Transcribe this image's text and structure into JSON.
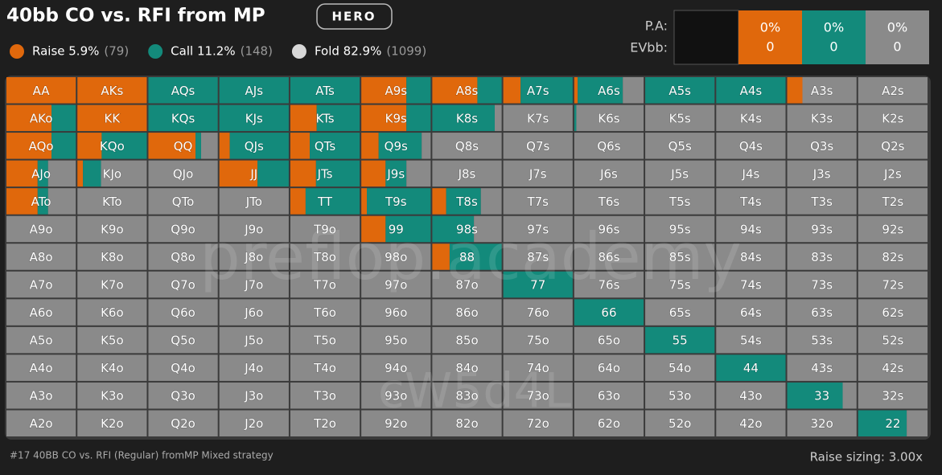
{
  "header": {
    "title": "40bb CO vs. RFI from MP",
    "badge": "HERO"
  },
  "legend": [
    {
      "label": "Raise 5.9%",
      "count": "(79)",
      "color": "#e0680c"
    },
    {
      "label": "Call 11.2%",
      "count": "(148)",
      "color": "#138a7b"
    },
    {
      "label": "Fold 82.9%",
      "count": "(1099)",
      "color": "#d8d8d8"
    }
  ],
  "stats": {
    "labels": [
      "P.A:",
      "EVbb:"
    ],
    "columns": [
      {
        "pa": "0%",
        "ev": "0",
        "color": "#e0680c"
      },
      {
        "pa": "0%",
        "ev": "0",
        "color": "#138a7b"
      },
      {
        "pa": "0%",
        "ev": "0",
        "color": "#8a8a8a"
      }
    ]
  },
  "grid": {
    "colors": {
      "raise": "#e0680c",
      "call": "#138a7b",
      "fold": "#8a8a8a"
    },
    "rows": [
      [
        [
          "AA",
          100,
          0,
          0
        ],
        [
          "AKs",
          100,
          0,
          0
        ],
        [
          "AQs",
          0,
          100,
          0
        ],
        [
          "AJs",
          0,
          100,
          0
        ],
        [
          "ATs",
          0,
          100,
          0
        ],
        [
          "A9s",
          65,
          35,
          0
        ],
        [
          "A8s",
          65,
          35,
          0
        ],
        [
          "A7s",
          25,
          75,
          0
        ],
        [
          "A6s",
          5,
          65,
          30
        ],
        [
          "A5s",
          0,
          100,
          0
        ],
        [
          "A4s",
          0,
          100,
          0
        ],
        [
          "A3s",
          22,
          0,
          78
        ],
        [
          "A2s",
          0,
          0,
          100
        ]
      ],
      [
        [
          "AKo",
          65,
          35,
          0
        ],
        [
          "KK",
          100,
          0,
          0
        ],
        [
          "KQs",
          0,
          100,
          0
        ],
        [
          "KJs",
          0,
          100,
          0
        ],
        [
          "KTs",
          38,
          62,
          0
        ],
        [
          "K9s",
          65,
          35,
          0
        ],
        [
          "K8s",
          0,
          90,
          10
        ],
        [
          "K7s",
          0,
          0,
          100
        ],
        [
          "K6s",
          0,
          3,
          97
        ],
        [
          "K5s",
          0,
          0,
          100
        ],
        [
          "K4s",
          0,
          0,
          100
        ],
        [
          "K3s",
          0,
          0,
          100
        ],
        [
          "K2s",
          0,
          0,
          100
        ]
      ],
      [
        [
          "AQo",
          65,
          35,
          0
        ],
        [
          "KQo",
          35,
          65,
          0
        ],
        [
          "QQ",
          68,
          8,
          24
        ],
        [
          "QJs",
          15,
          85,
          0
        ],
        [
          "QTs",
          28,
          72,
          0
        ],
        [
          "Q9s",
          25,
          62,
          13
        ],
        [
          "Q8s",
          0,
          0,
          100
        ],
        [
          "Q7s",
          0,
          0,
          100
        ],
        [
          "Q6s",
          0,
          0,
          100
        ],
        [
          "Q5s",
          0,
          0,
          100
        ],
        [
          "Q4s",
          0,
          0,
          100
        ],
        [
          "Q3s",
          0,
          0,
          100
        ],
        [
          "Q2s",
          0,
          0,
          100
        ]
      ],
      [
        [
          "AJo",
          45,
          15,
          40
        ],
        [
          "KJo",
          8,
          26,
          66
        ],
        [
          "QJo",
          0,
          0,
          100
        ],
        [
          "JJ",
          55,
          45,
          0
        ],
        [
          "JTs",
          37,
          63,
          0
        ],
        [
          "J9s",
          35,
          30,
          35
        ],
        [
          "J8s",
          0,
          0,
          100
        ],
        [
          "J7s",
          0,
          0,
          100
        ],
        [
          "J6s",
          0,
          0,
          100
        ],
        [
          "J5s",
          0,
          0,
          100
        ],
        [
          "J4s",
          0,
          0,
          100
        ],
        [
          "J3s",
          0,
          0,
          100
        ],
        [
          "J2s",
          0,
          0,
          100
        ]
      ],
      [
        [
          "ATo",
          45,
          15,
          40
        ],
        [
          "KTo",
          0,
          0,
          100
        ],
        [
          "QTo",
          0,
          0,
          100
        ],
        [
          "JTo",
          0,
          0,
          100
        ],
        [
          "TT",
          22,
          78,
          0
        ],
        [
          "T9s",
          8,
          92,
          0
        ],
        [
          "T8s",
          20,
          50,
          30
        ],
        [
          "T7s",
          0,
          0,
          100
        ],
        [
          "T6s",
          0,
          0,
          100
        ],
        [
          "T5s",
          0,
          0,
          100
        ],
        [
          "T4s",
          0,
          0,
          100
        ],
        [
          "T3s",
          0,
          0,
          100
        ],
        [
          "T2s",
          0,
          0,
          100
        ]
      ],
      [
        [
          "A9o",
          0,
          0,
          100
        ],
        [
          "K9o",
          0,
          0,
          100
        ],
        [
          "Q9o",
          0,
          0,
          100
        ],
        [
          "J9o",
          0,
          0,
          100
        ],
        [
          "T9o",
          0,
          0,
          100
        ],
        [
          "99",
          35,
          65,
          0
        ],
        [
          "98s",
          0,
          60,
          40
        ],
        [
          "97s",
          0,
          0,
          100
        ],
        [
          "96s",
          0,
          0,
          100
        ],
        [
          "95s",
          0,
          0,
          100
        ],
        [
          "94s",
          0,
          0,
          100
        ],
        [
          "93s",
          0,
          0,
          100
        ],
        [
          "92s",
          0,
          0,
          100
        ]
      ],
      [
        [
          "A8o",
          0,
          0,
          100
        ],
        [
          "K8o",
          0,
          0,
          100
        ],
        [
          "Q8o",
          0,
          0,
          100
        ],
        [
          "J8o",
          0,
          0,
          100
        ],
        [
          "T8o",
          0,
          0,
          100
        ],
        [
          "98o",
          0,
          0,
          100
        ],
        [
          "88",
          25,
          75,
          0
        ],
        [
          "87s",
          0,
          0,
          100
        ],
        [
          "86s",
          0,
          0,
          100
        ],
        [
          "85s",
          0,
          0,
          100
        ],
        [
          "84s",
          0,
          0,
          100
        ],
        [
          "83s",
          0,
          0,
          100
        ],
        [
          "82s",
          0,
          0,
          100
        ]
      ],
      [
        [
          "A7o",
          0,
          0,
          100
        ],
        [
          "K7o",
          0,
          0,
          100
        ],
        [
          "Q7o",
          0,
          0,
          100
        ],
        [
          "J7o",
          0,
          0,
          100
        ],
        [
          "T7o",
          0,
          0,
          100
        ],
        [
          "97o",
          0,
          0,
          100
        ],
        [
          "87o",
          0,
          0,
          100
        ],
        [
          "77",
          0,
          100,
          0
        ],
        [
          "76s",
          0,
          0,
          100
        ],
        [
          "75s",
          0,
          0,
          100
        ],
        [
          "74s",
          0,
          0,
          100
        ],
        [
          "73s",
          0,
          0,
          100
        ],
        [
          "72s",
          0,
          0,
          100
        ]
      ],
      [
        [
          "A6o",
          0,
          0,
          100
        ],
        [
          "K6o",
          0,
          0,
          100
        ],
        [
          "Q6o",
          0,
          0,
          100
        ],
        [
          "J6o",
          0,
          0,
          100
        ],
        [
          "T6o",
          0,
          0,
          100
        ],
        [
          "96o",
          0,
          0,
          100
        ],
        [
          "86o",
          0,
          0,
          100
        ],
        [
          "76o",
          0,
          0,
          100
        ],
        [
          "66",
          0,
          100,
          0
        ],
        [
          "65s",
          0,
          0,
          100
        ],
        [
          "64s",
          0,
          0,
          100
        ],
        [
          "63s",
          0,
          0,
          100
        ],
        [
          "62s",
          0,
          0,
          100
        ]
      ],
      [
        [
          "A5o",
          0,
          0,
          100
        ],
        [
          "K5o",
          0,
          0,
          100
        ],
        [
          "Q5o",
          0,
          0,
          100
        ],
        [
          "J5o",
          0,
          0,
          100
        ],
        [
          "T5o",
          0,
          0,
          100
        ],
        [
          "95o",
          0,
          0,
          100
        ],
        [
          "85o",
          0,
          0,
          100
        ],
        [
          "75o",
          0,
          0,
          100
        ],
        [
          "65o",
          0,
          0,
          100
        ],
        [
          "55",
          0,
          100,
          0
        ],
        [
          "54s",
          0,
          0,
          100
        ],
        [
          "53s",
          0,
          0,
          100
        ],
        [
          "52s",
          0,
          0,
          100
        ]
      ],
      [
        [
          "A4o",
          0,
          0,
          100
        ],
        [
          "K4o",
          0,
          0,
          100
        ],
        [
          "Q4o",
          0,
          0,
          100
        ],
        [
          "J4o",
          0,
          0,
          100
        ],
        [
          "T4o",
          0,
          0,
          100
        ],
        [
          "94o",
          0,
          0,
          100
        ],
        [
          "84o",
          0,
          0,
          100
        ],
        [
          "74o",
          0,
          0,
          100
        ],
        [
          "64o",
          0,
          0,
          100
        ],
        [
          "54o",
          0,
          0,
          100
        ],
        [
          "44",
          0,
          100,
          0
        ],
        [
          "43s",
          0,
          0,
          100
        ],
        [
          "42s",
          0,
          0,
          100
        ]
      ],
      [
        [
          "A3o",
          0,
          0,
          100
        ],
        [
          "K3o",
          0,
          0,
          100
        ],
        [
          "Q3o",
          0,
          0,
          100
        ],
        [
          "J3o",
          0,
          0,
          100
        ],
        [
          "T3o",
          0,
          0,
          100
        ],
        [
          "93o",
          0,
          0,
          100
        ],
        [
          "83o",
          0,
          0,
          100
        ],
        [
          "73o",
          0,
          0,
          100
        ],
        [
          "63o",
          0,
          0,
          100
        ],
        [
          "53o",
          0,
          0,
          100
        ],
        [
          "43o",
          0,
          0,
          100
        ],
        [
          "33",
          0,
          80,
          20
        ],
        [
          "32s",
          0,
          0,
          100
        ]
      ],
      [
        [
          "A2o",
          0,
          0,
          100
        ],
        [
          "K2o",
          0,
          0,
          100
        ],
        [
          "Q2o",
          0,
          0,
          100
        ],
        [
          "J2o",
          0,
          0,
          100
        ],
        [
          "T2o",
          0,
          0,
          100
        ],
        [
          "92o",
          0,
          0,
          100
        ],
        [
          "82o",
          0,
          0,
          100
        ],
        [
          "72o",
          0,
          0,
          100
        ],
        [
          "62o",
          0,
          0,
          100
        ],
        [
          "52o",
          0,
          0,
          100
        ],
        [
          "42o",
          0,
          0,
          100
        ],
        [
          "32o",
          0,
          0,
          100
        ],
        [
          "22",
          0,
          70,
          30
        ]
      ]
    ]
  },
  "watermarks": [
    "preflop.academy",
    "cW5d4L"
  ],
  "footer": {
    "left": "#17 40BB CO vs. RFI (Regular) fromMP Mixed strategy",
    "right": "Raise sizing: 3.00x"
  }
}
